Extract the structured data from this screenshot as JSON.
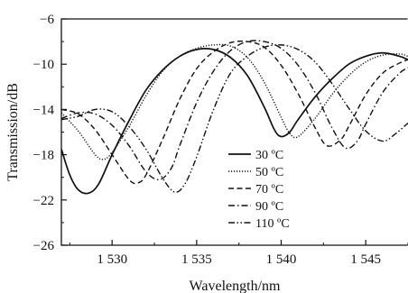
{
  "chart_data": {
    "type": "line",
    "title": "",
    "xlabel": "Wavelength/nm",
    "ylabel": "Transmission/dB",
    "xlim": [
      1527,
      1547.5
    ],
    "ylim": [
      -26,
      -6
    ],
    "x_ticks": [
      1530,
      1535,
      1540,
      1545
    ],
    "x_tick_labels": [
      "1 530",
      "1 535",
      "1 540",
      "1 545"
    ],
    "y_ticks": [
      -26,
      -22,
      -18,
      -14,
      -10,
      -6
    ],
    "y_tick_labels": [
      "−26",
      "−22",
      "−18",
      "−14",
      "−10",
      "−6"
    ],
    "grid": false,
    "legend_position": "center-right",
    "series": [
      {
        "name": "30 ºC",
        "style": "solid",
        "x": [
          1527.0,
          1527.5,
          1528.0,
          1528.6,
          1529.2,
          1530.0,
          1531.0,
          1532.0,
          1533.0,
          1534.0,
          1535.0,
          1536.0,
          1537.0,
          1538.0,
          1539.0,
          1539.6,
          1540.0,
          1540.5,
          1541.0,
          1542.0,
          1543.0,
          1544.0,
          1545.0,
          1546.0,
          1547.0,
          1547.5
        ],
        "y": [
          -17.5,
          -19.8,
          -21.1,
          -21.4,
          -20.6,
          -18.0,
          -15.0,
          -12.3,
          -10.5,
          -9.3,
          -8.7,
          -8.7,
          -9.4,
          -11.0,
          -13.8,
          -15.8,
          -16.4,
          -16.0,
          -14.9,
          -12.9,
          -11.3,
          -10.0,
          -9.3,
          -9.0,
          -9.3,
          -9.6
        ]
      },
      {
        "name": "50 ºC",
        "style": "dotted",
        "x": [
          1527.0,
          1528.0,
          1529.0,
          1529.5,
          1530.0,
          1531.0,
          1532.0,
          1533.0,
          1534.0,
          1535.0,
          1536.0,
          1537.0,
          1538.0,
          1539.0,
          1540.0,
          1540.5,
          1541.0,
          1542.0,
          1543.0,
          1544.0,
          1545.0,
          1546.0,
          1547.0,
          1547.5
        ],
        "y": [
          -14.3,
          -15.9,
          -18.0,
          -18.4,
          -17.8,
          -15.5,
          -12.8,
          -10.6,
          -9.3,
          -8.6,
          -8.3,
          -8.4,
          -9.4,
          -11.6,
          -14.7,
          -16.1,
          -16.4,
          -14.8,
          -12.7,
          -11.0,
          -9.8,
          -9.2,
          -9.1,
          -9.3
        ]
      },
      {
        "name": "70 ºC",
        "style": "dashed",
        "x": [
          1527.0,
          1528.0,
          1529.0,
          1530.0,
          1531.0,
          1531.5,
          1532.0,
          1533.0,
          1534.0,
          1535.0,
          1536.0,
          1537.0,
          1538.0,
          1539.0,
          1540.0,
          1541.0,
          1542.0,
          1542.7,
          1543.5,
          1544.0,
          1545.0,
          1546.0,
          1547.0,
          1547.5
        ],
        "y": [
          -14.0,
          -14.4,
          -15.8,
          -18.0,
          -20.2,
          -20.5,
          -19.8,
          -16.6,
          -13.1,
          -10.4,
          -8.9,
          -8.1,
          -8.0,
          -8.5,
          -10.1,
          -12.6,
          -15.6,
          -17.2,
          -16.7,
          -15.5,
          -12.7,
          -10.8,
          -9.9,
          -9.6
        ]
      },
      {
        "name": "90 ºC",
        "style": "dashdot",
        "x": [
          1527.0,
          1528.0,
          1529.0,
          1530.0,
          1531.0,
          1532.0,
          1532.8,
          1533.5,
          1534.0,
          1535.0,
          1536.0,
          1537.0,
          1538.0,
          1539.0,
          1540.0,
          1541.0,
          1542.0,
          1543.0,
          1543.8,
          1544.5,
          1545.0,
          1546.0,
          1547.0,
          1547.5
        ],
        "y": [
          -14.8,
          -14.3,
          -14.4,
          -15.4,
          -17.2,
          -19.5,
          -20.2,
          -19.2,
          -17.2,
          -13.4,
          -10.6,
          -8.8,
          -8.0,
          -8.0,
          -8.6,
          -10.1,
          -12.5,
          -15.6,
          -17.4,
          -16.8,
          -15.3,
          -12.5,
          -10.8,
          -10.3
        ]
      },
      {
        "name": "110 ºC",
        "style": "dashdotdot",
        "x": [
          1527.0,
          1528.0,
          1529.0,
          1530.0,
          1531.0,
          1532.0,
          1533.0,
          1533.7,
          1534.3,
          1535.0,
          1536.0,
          1537.0,
          1538.0,
          1539.0,
          1540.0,
          1541.0,
          1542.0,
          1543.0,
          1544.0,
          1545.0,
          1546.0,
          1546.8,
          1547.5
        ],
        "y": [
          -14.9,
          -14.6,
          -14.0,
          -14.2,
          -15.5,
          -17.5,
          -20.1,
          -21.3,
          -20.6,
          -18.2,
          -14.0,
          -10.8,
          -9.3,
          -8.5,
          -8.3,
          -8.7,
          -9.8,
          -11.7,
          -13.9,
          -15.9,
          -16.8,
          -16.1,
          -15.2
        ]
      }
    ]
  }
}
